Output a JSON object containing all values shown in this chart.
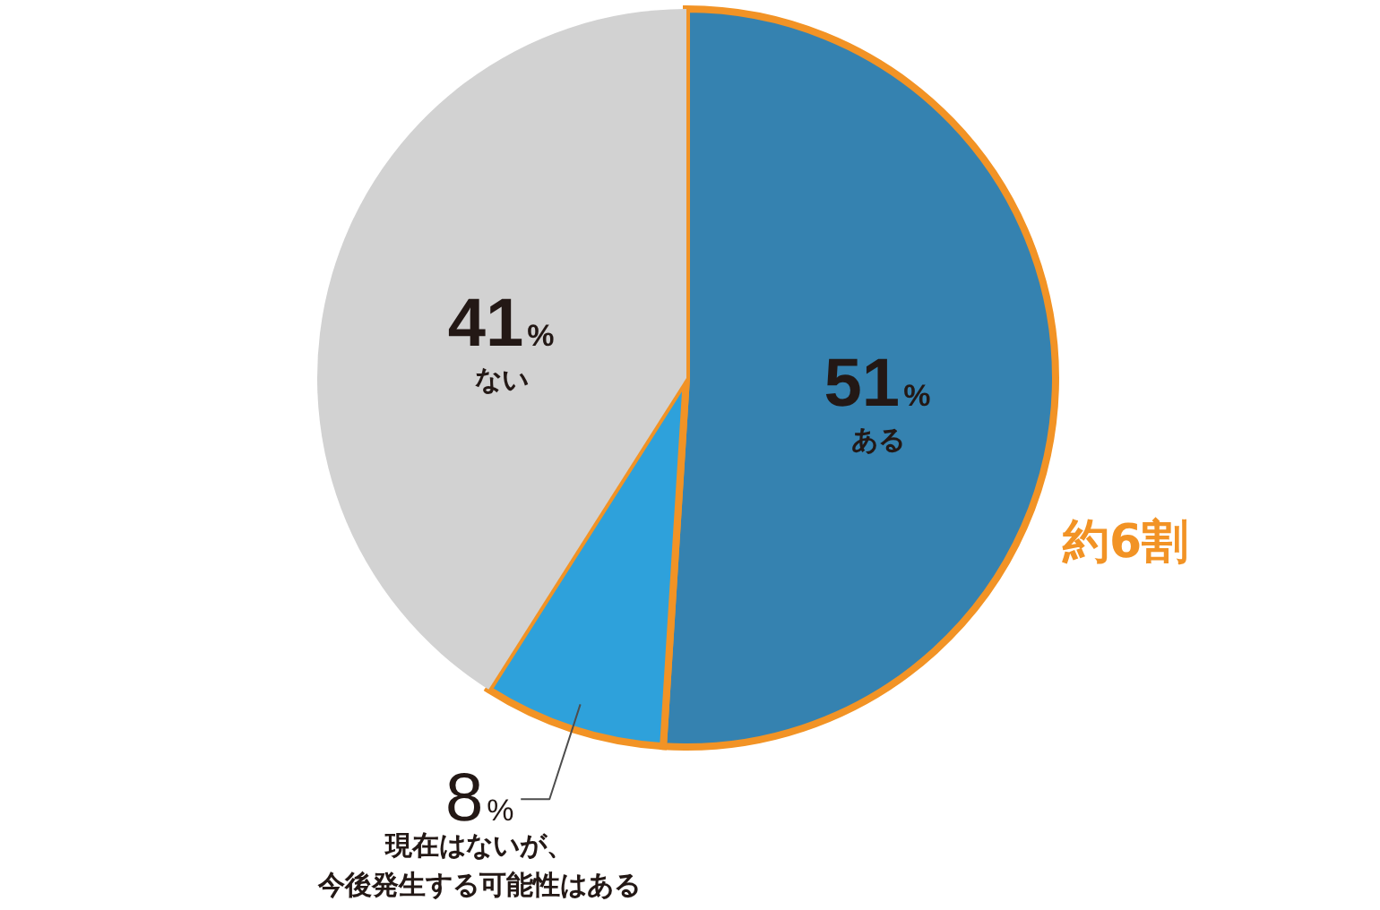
{
  "chart_data": {
    "type": "pie",
    "categories": [
      "ある",
      "現在はないが、今後発生する可能性はある",
      "ない"
    ],
    "values": [
      51,
      8,
      41
    ],
    "colors": [
      "#3582b0",
      "#2ea1db",
      "#d2d2d2"
    ],
    "value_labels": [
      "51%",
      "8%",
      "41%"
    ],
    "annotations": [
      "約6割"
    ]
  }
}
